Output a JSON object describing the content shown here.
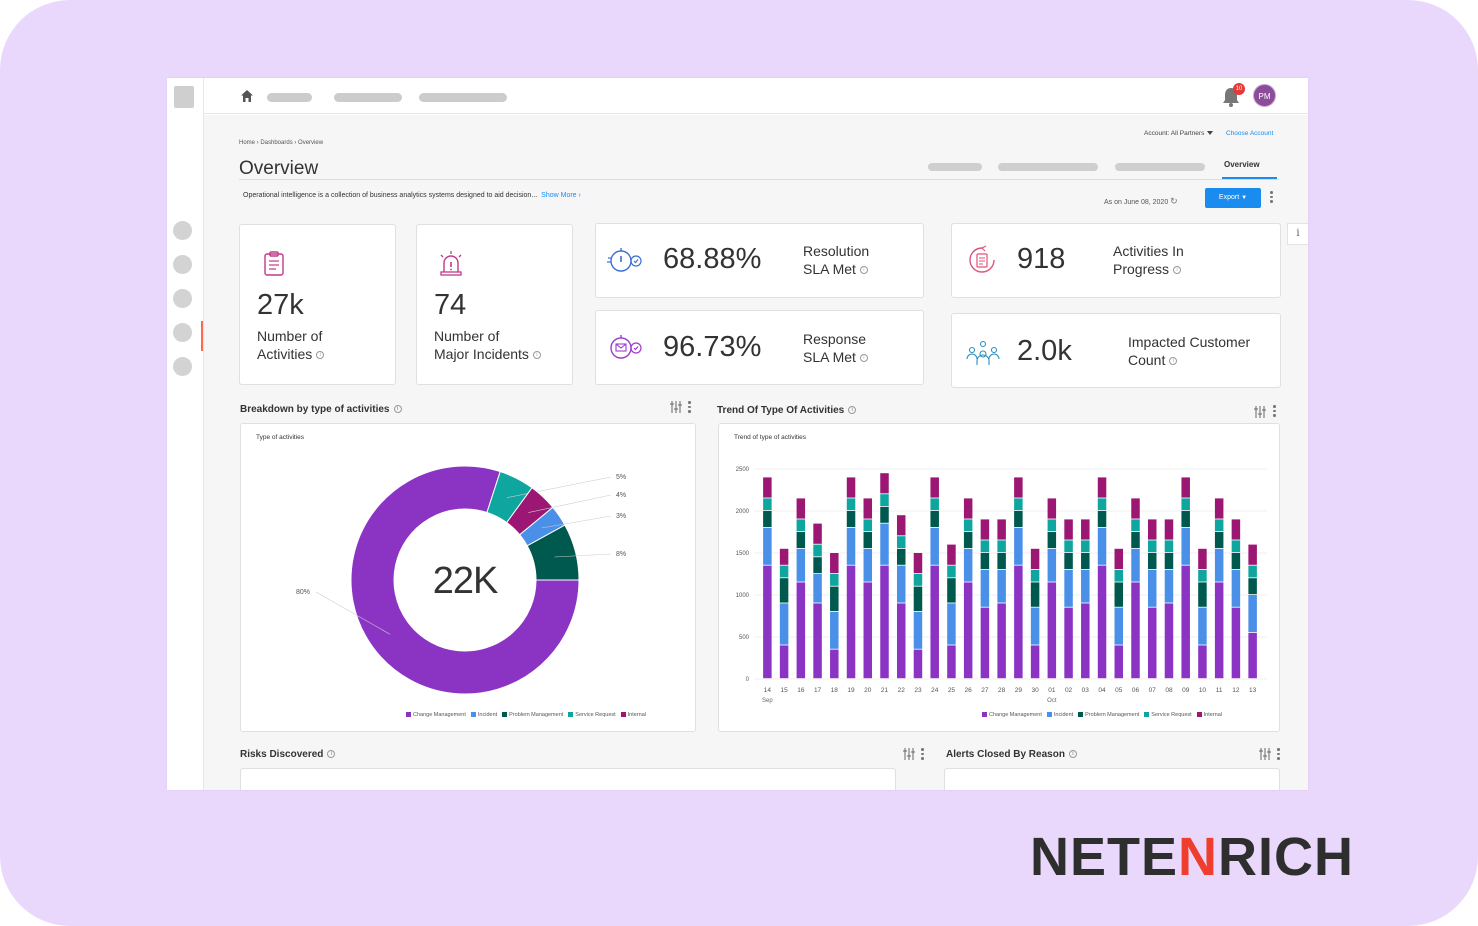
{
  "brand": {
    "name_left": "NETE",
    "name_mid": "N",
    "name_right": "RICH",
    "accent": "#ef3e2e"
  },
  "topbar": {
    "notification_count": "10",
    "avatar_initials": "PM"
  },
  "breadcrumb": {
    "text": "Home › Dashboards › Overview"
  },
  "account": {
    "label": "Account: All Partners",
    "choose_label": "Choose Account"
  },
  "page": {
    "title": "Overview",
    "active_tab": "Overview",
    "description": "Operational intelligence is a collection of business analytics systems designed to aid  decision...",
    "show_more": "Show More ›",
    "as_of": "As on June 08, 2020",
    "export_label": "Export"
  },
  "kpis": {
    "activities": {
      "value": "27k",
      "label1": "Number of",
      "label2": "Activities"
    },
    "incidents": {
      "value": "74",
      "label1": "Number of",
      "label2": "Major Incidents"
    },
    "resolution": {
      "value": "68.88%",
      "label1": "Resolution",
      "label2": "SLA Met"
    },
    "response": {
      "value": "96.73%",
      "label1": "Response",
      "label2": "SLA Met"
    },
    "in_progress": {
      "value": "918",
      "label1": "Activities In",
      "label2": "Progress"
    },
    "impacted": {
      "value": "2.0k",
      "label1": "Impacted Customer",
      "label2": "Count"
    }
  },
  "sections": {
    "breakdown": "Breakdown by type of activities",
    "trend": "Trend Of Type Of Activities",
    "risks": "Risks Discovered",
    "alerts": "Alerts Closed By Reason"
  },
  "series_colors": {
    "Change Management": "#8b34c4",
    "Incident": "#4a90e8",
    "Problem Management": "#00594f",
    "Service Request": "#0fa6a0",
    "Internal": "#9c1673"
  },
  "chart_data": [
    {
      "type": "pie",
      "subtitle": "Type of activities",
      "center_label": "22K",
      "categories": [
        "Change Management",
        "Incident",
        "Problem Management",
        "Service Request",
        "Internal"
      ],
      "values": [
        80,
        3,
        8,
        5,
        4
      ],
      "labels": [
        "80%",
        "3%",
        "8%",
        "5%",
        "4%"
      ],
      "legend_position": "bottom-right"
    },
    {
      "type": "bar",
      "stacked": true,
      "subtitle": "Trend of type of activities",
      "categories": [
        "14",
        "15",
        "16",
        "17",
        "18",
        "19",
        "20",
        "21",
        "22",
        "23",
        "24",
        "25",
        "26",
        "27",
        "28",
        "29",
        "30",
        "01",
        "02",
        "03",
        "04",
        "05",
        "06",
        "07",
        "08",
        "09",
        "10",
        "11",
        "12",
        "13"
      ],
      "month_labels": [
        {
          "index": 0,
          "label": "Sep"
        },
        {
          "index": 17,
          "label": "Oct"
        }
      ],
      "ylim": [
        0,
        2500
      ],
      "yticks": [
        0,
        500,
        1000,
        1500,
        2000,
        2500
      ],
      "grid": true,
      "legend_position": "bottom-right",
      "series": [
        {
          "name": "Change Management",
          "values": [
            1350,
            400,
            1150,
            900,
            350,
            1350,
            1150,
            1350,
            900,
            350,
            1350,
            400,
            1150,
            850,
            900,
            1350,
            400,
            1150,
            850,
            900,
            1350,
            400,
            1150,
            850,
            900,
            1350,
            400,
            1150,
            850,
            550
          ]
        },
        {
          "name": "Incident",
          "values": [
            450,
            500,
            400,
            350,
            450,
            450,
            400,
            500,
            450,
            450,
            450,
            500,
            400,
            450,
            400,
            450,
            450,
            400,
            450,
            400,
            450,
            450,
            400,
            450,
            400,
            450,
            450,
            400,
            450,
            450
          ]
        },
        {
          "name": "Problem Management",
          "values": [
            200,
            300,
            200,
            200,
            300,
            200,
            200,
            200,
            200,
            300,
            200,
            300,
            200,
            200,
            200,
            200,
            300,
            200,
            200,
            200,
            200,
            300,
            200,
            200,
            200,
            200,
            300,
            200,
            200,
            200
          ]
        },
        {
          "name": "Service Request",
          "values": [
            150,
            150,
            150,
            150,
            150,
            150,
            150,
            150,
            150,
            150,
            150,
            150,
            150,
            150,
            150,
            150,
            150,
            150,
            150,
            150,
            150,
            150,
            150,
            150,
            150,
            150,
            150,
            150,
            150,
            150
          ]
        },
        {
          "name": "Internal",
          "values": [
            250,
            200,
            250,
            250,
            250,
            250,
            250,
            250,
            250,
            250,
            250,
            250,
            250,
            250,
            250,
            250,
            250,
            250,
            250,
            250,
            250,
            250,
            250,
            250,
            250,
            250,
            250,
            250,
            250,
            250
          ]
        }
      ]
    }
  ]
}
